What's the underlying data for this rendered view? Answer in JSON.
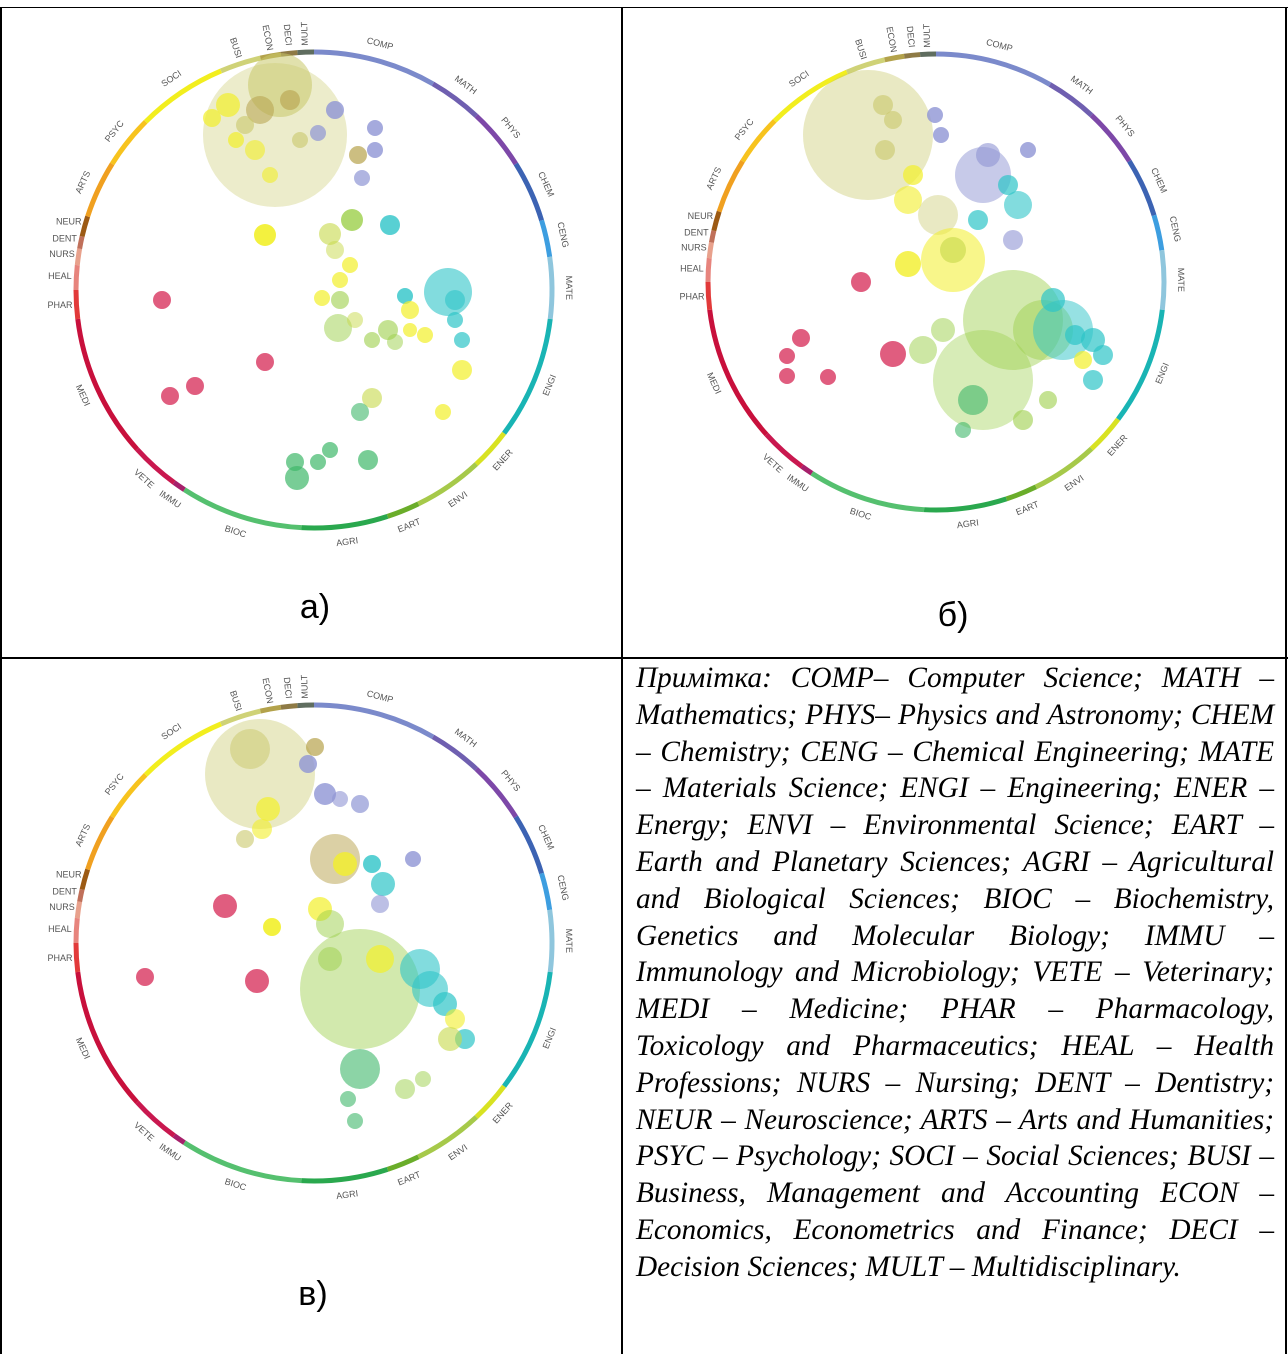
{
  "captions": {
    "a": "а)",
    "b": "б)",
    "c": "в)"
  },
  "note": "Примітка: COMP– Computer Science; MATH – Mathematics; PHYS– Physics and Astronomy; CHEM – Chemistry; CENG – Chemical Engineering; MATE – Materials Science; ENGI – Engineering; ENER – Energy; ENVI – Environmental Science; EART – Earth and Planetary Sciences; AGRI – Agricultural and Biological Sciences; BIOC – Biochemistry, Genetics and Molecular Biology; IMMU – Immunology and Microbiology; VETE – Veterinary; MEDI – Medicine; PHAR – Pharmacology, Toxicology and Pharmaceutics; HEAL – Health Professions; NURS – Nursing; DENT – Dentistry; NEUR – Neuroscience; ARTS – Arts and Humanities; PSYC – Psychology; SOCI – Social Sciences; BUSI – Business, Management and Accounting ECON – Economics, Econometrics and Finance; DECI – Decision Sciences; MULT – Multidisciplinary.",
  "chart_data": [
    {
      "type": "scatter",
      "panel": "а)",
      "ring_categories": [
        {
          "code": "MULT",
          "color": "#5f6d5f"
        },
        {
          "code": "COMP",
          "color": "#7b8acb"
        },
        {
          "code": "MATH",
          "color": "#6f5fb0"
        },
        {
          "code": "PHYS",
          "color": "#7d48a8"
        },
        {
          "code": "CHEM",
          "color": "#3c63b3"
        },
        {
          "code": "CENG",
          "color": "#3d9ee0"
        },
        {
          "code": "MATE",
          "color": "#8fc6dd"
        },
        {
          "code": "ENGI",
          "color": "#19b4b4"
        },
        {
          "code": "ENER",
          "color": "#d8e222"
        },
        {
          "code": "ENVI",
          "color": "#a6c94a"
        },
        {
          "code": "EART",
          "color": "#6aad2a"
        },
        {
          "code": "AGRI",
          "color": "#2aa84e"
        },
        {
          "code": "BIOC",
          "color": "#55c06f"
        },
        {
          "code": "IMMU",
          "color": "#a6206b"
        },
        {
          "code": "VETE",
          "color": "#c9184f"
        },
        {
          "code": "MEDI",
          "color": "#c8103c"
        },
        {
          "code": "PHAR",
          "color": "#e23a3a"
        },
        {
          "code": "HEAL",
          "color": "#e7847d"
        },
        {
          "code": "NURS",
          "color": "#e8a18c"
        },
        {
          "code": "DENT",
          "color": "#c0705a"
        },
        {
          "code": "NEUR",
          "color": "#9c5a14"
        },
        {
          "code": "ARTS",
          "color": "#f0a020"
        },
        {
          "code": "PSYC",
          "color": "#f7c31e"
        },
        {
          "code": "SOCI",
          "color": "#f2ee1e"
        },
        {
          "code": "BUSI",
          "color": "#cfd277"
        },
        {
          "code": "ECON",
          "color": "#b3a24b"
        },
        {
          "code": "DECI",
          "color": "#8e7a45"
        }
      ]
    },
    {
      "type": "scatter",
      "panel": "б)",
      "ring_categories": "same as panel а)"
    },
    {
      "type": "scatter",
      "panel": "в)",
      "ring_categories": "same as panel а)"
    }
  ]
}
